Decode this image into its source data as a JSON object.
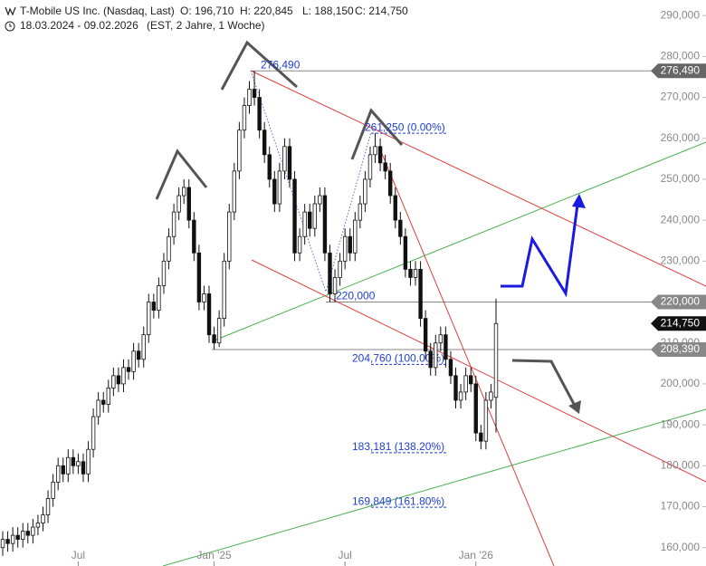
{
  "header": {
    "name": "T-Mobile US Inc. (Nasdaq, Last)",
    "open": "O: 196,710",
    "high": "H: 220,845",
    "low": "L: 188,150",
    "close": "C: 214,750",
    "range": "18.03.2024 - 09.02.2026",
    "info": "(EST, 2 Jahre, 1 Woche)"
  },
  "chart_data": {
    "type": "candlestick",
    "open": [
      160,
      162,
      161,
      163,
      162,
      164,
      163,
      165,
      166,
      168,
      172,
      176,
      180,
      178,
      182,
      180,
      181,
      178,
      184,
      192,
      196,
      195,
      199,
      202,
      200,
      204,
      203,
      208,
      206,
      212,
      220,
      218,
      224,
      230,
      236,
      242,
      246,
      248,
      240,
      232,
      220,
      222,
      212,
      210,
      216,
      230,
      242,
      252,
      262,
      268,
      272,
      270,
      262,
      256,
      250,
      244,
      252,
      258,
      250,
      232,
      236,
      242,
      238,
      244,
      246,
      232,
      222,
      226,
      230,
      236,
      232,
      240,
      244,
      250,
      256,
      258,
      254,
      252,
      246,
      240,
      236,
      228,
      226,
      228,
      216,
      208,
      204,
      210,
      212,
      206,
      202,
      196,
      198,
      202,
      200,
      188,
      186,
      196,
      196.71
    ],
    "high": [
      164,
      164,
      165,
      165,
      166,
      166,
      167,
      168,
      170,
      174,
      178,
      182,
      182,
      184,
      184,
      183,
      183,
      186,
      194,
      198,
      198,
      201,
      204,
      204,
      206,
      206,
      210,
      210,
      214,
      222,
      222,
      226,
      232,
      238,
      244,
      248,
      250,
      250,
      242,
      234,
      224,
      224,
      214,
      218,
      232,
      244,
      254,
      264,
      270,
      274,
      276.49,
      272,
      264,
      258,
      252,
      254,
      260,
      260,
      252,
      238,
      244,
      244,
      246,
      248,
      248,
      234,
      228,
      232,
      238,
      238,
      242,
      246,
      252,
      258,
      261.25,
      260,
      256,
      254,
      248,
      242,
      238,
      230,
      230,
      230,
      218,
      210,
      212,
      214,
      214,
      208,
      204,
      200,
      204,
      204,
      202,
      190,
      198,
      200,
      220.845
    ],
    "low": [
      158,
      159,
      159,
      160,
      160,
      161,
      161,
      163,
      164,
      166,
      170,
      174,
      176,
      176,
      178,
      178,
      176,
      176,
      182,
      190,
      193,
      193,
      197,
      198,
      198,
      201,
      201,
      204,
      204,
      210,
      216,
      216,
      222,
      228,
      234,
      240,
      244,
      238,
      230,
      218,
      218,
      210,
      208.39,
      209,
      214,
      228,
      240,
      250,
      260,
      266,
      268,
      260,
      254,
      248,
      242,
      242,
      250,
      248,
      230,
      230,
      234,
      236,
      236,
      242,
      230,
      220,
      220,
      224,
      228,
      230,
      230,
      238,
      242,
      248,
      254,
      252,
      250,
      244,
      238,
      234,
      226,
      224,
      224,
      214,
      206,
      202,
      202,
      208,
      204,
      200,
      194,
      194,
      196,
      198,
      186,
      184,
      184,
      194,
      188.15
    ],
    "close": [
      162,
      161,
      163,
      162,
      164,
      163,
      165,
      166,
      168,
      172,
      176,
      180,
      178,
      182,
      180,
      181,
      178,
      184,
      192,
      196,
      195,
      199,
      202,
      200,
      204,
      203,
      208,
      206,
      212,
      220,
      218,
      224,
      230,
      236,
      242,
      246,
      248,
      240,
      232,
      220,
      222,
      212,
      210,
      216,
      230,
      242,
      252,
      262,
      268,
      272,
      270,
      262,
      256,
      250,
      244,
      252,
      258,
      250,
      232,
      236,
      242,
      238,
      244,
      246,
      232,
      222,
      226,
      230,
      236,
      232,
      240,
      244,
      250,
      256,
      258,
      254,
      252,
      246,
      240,
      236,
      228,
      226,
      228,
      216,
      208,
      204,
      210,
      212,
      206,
      202,
      196,
      198,
      202,
      200,
      188,
      186,
      196,
      198,
      214.75
    ],
    "ylim": [
      155.5,
      293.8
    ],
    "yticks": [
      {
        "value": 160,
        "label": "160,000"
      },
      {
        "value": 170,
        "label": "170,000"
      },
      {
        "value": 180,
        "label": "180,000"
      },
      {
        "value": 190,
        "label": "190,000"
      },
      {
        "value": 200,
        "label": "200,000"
      },
      {
        "value": 210,
        "label": "210,000"
      },
      {
        "value": 230,
        "label": "230,000"
      },
      {
        "value": 240,
        "label": "240,000"
      },
      {
        "value": 250,
        "label": "250,000"
      },
      {
        "value": 260,
        "label": "260,000"
      },
      {
        "value": 270,
        "label": "270,000"
      },
      {
        "value": 280,
        "label": "280,000"
      },
      {
        "value": 290,
        "label": "290,000"
      }
    ],
    "xlim": [
      0,
      98
    ],
    "xticks": [
      {
        "value": 15,
        "label": "Jul"
      },
      {
        "value": 42,
        "label": "Jan '25"
      },
      {
        "value": 68,
        "label": "Jul"
      },
      {
        "value": 94,
        "label": "Jan '26"
      }
    ],
    "levels": [
      {
        "value": 276.49,
        "label": "276,490",
        "color": "#666666"
      },
      {
        "value": 220,
        "label": "220,000",
        "color": "#888888"
      },
      {
        "value": 214.75,
        "label": "214,750",
        "color": "#111111"
      },
      {
        "value": 208.39,
        "label": "208,390",
        "color": "#888888"
      }
    ],
    "fib": [
      {
        "value": 276.49,
        "label": "276,490"
      },
      {
        "value": 261.25,
        "label": "261,250 (0.00%)"
      },
      {
        "value": 220,
        "label": "220,000"
      },
      {
        "value": 204.76,
        "label": "204,760 (100.00%)"
      },
      {
        "value": 183.181,
        "label": "183,181 (138.20%)"
      },
      {
        "value": 169.849,
        "label": "169,849 (161.80%)"
      }
    ]
  }
}
